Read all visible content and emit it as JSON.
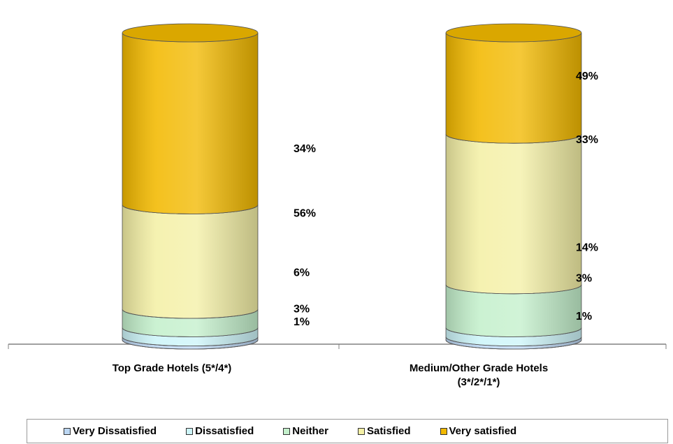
{
  "chart_data": {
    "type": "bar",
    "stacked": true,
    "style": "3d-cylinder",
    "categories": [
      "Top Grade Hotels (5*/4*)",
      "Medium/Other Grade Hotels\n(3*/2*/1*)"
    ],
    "series": [
      {
        "name": "Very Dissatisfied",
        "values": [
          1,
          1
        ],
        "color": "#bcd7f3"
      },
      {
        "name": "Dissatisfied",
        "values": [
          3,
          3
        ],
        "color": "#cdf5f9"
      },
      {
        "name": "Neither",
        "values": [
          6,
          14
        ],
        "color": "#c4f0cc"
      },
      {
        "name": "Satisfied",
        "values": [
          34,
          49
        ],
        "color": "#f4f0a6"
      },
      {
        "name": "Very satisfied",
        "values": [
          56,
          33
        ],
        "color": "#f2b900"
      }
    ],
    "data_labels": [
      [
        "1%",
        "3%",
        "6%",
        "34%",
        "56%"
      ],
      [
        "1%",
        "3%",
        "14%",
        "49%",
        "33%"
      ]
    ],
    "ylim": [
      0,
      100
    ],
    "legend": "bottom"
  }
}
